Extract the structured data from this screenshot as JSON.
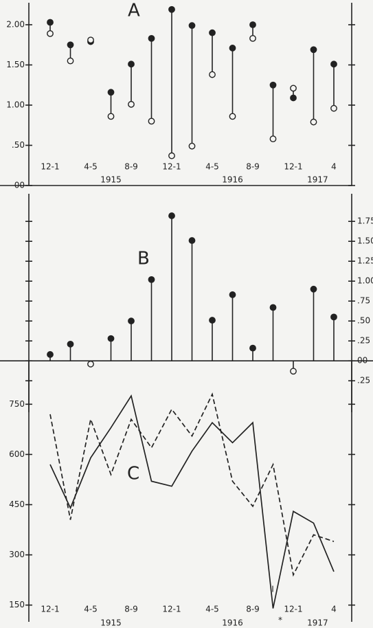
{
  "chart_data": [
    {
      "type": "dumbbell",
      "title": "A",
      "categories": [
        "12-1",
        null,
        "4-5",
        null,
        "8-9",
        null,
        "12-1",
        null,
        "4-5",
        null,
        "8-9",
        null,
        "12-1",
        null,
        "4"
      ],
      "year_labels": [
        "1915",
        "1916",
        "1917"
      ],
      "series": [
        {
          "marker": "filled",
          "color": "#222222",
          "values": [
            2.03,
            1.75,
            1.79,
            1.16,
            1.51,
            1.83,
            2.19,
            1.99,
            1.9,
            1.71,
            2.0,
            1.25,
            1.09,
            1.69,
            1.51
          ]
        },
        {
          "marker": "open",
          "color": "#222222",
          "values": [
            1.89,
            1.55,
            1.81,
            0.86,
            1.01,
            0.8,
            0.37,
            0.49,
            1.38,
            0.86,
            1.83,
            0.58,
            1.21,
            0.79,
            0.96
          ]
        }
      ],
      "ylim": [
        0,
        2.25
      ],
      "yticks": [
        {
          "value": 0,
          "label": "00"
        },
        {
          "value": 0.5,
          "label": ".50"
        },
        {
          "value": 1,
          "label": "1.00"
        },
        {
          "value": 1.5,
          "label": "1.50"
        },
        {
          "value": 2,
          "label": "2.00"
        }
      ]
    },
    {
      "type": "lollipop",
      "title": "B",
      "color": "#222222",
      "values": [
        0.08,
        0.21,
        -0.04,
        0.28,
        0.5,
        1.02,
        1.82,
        1.51,
        0.51,
        0.83,
        0.16,
        0.67,
        -0.13,
        0.9,
        0.55
      ],
      "ylim": [
        -0.3,
        2.1
      ],
      "yticks": [
        1.75,
        {
          "value": 1.5,
          "label": "1.50"
        },
        1.25,
        {
          "value": 1,
          "label": "1.00"
        },
        {
          "value": 0.75,
          "label": ".75"
        },
        {
          "value": 0.5,
          "label": ".50"
        },
        {
          "value": 0.25,
          "label": ".25"
        },
        {
          "value": 0,
          "label": "00"
        },
        {
          "value": -0.25,
          "label": ".25"
        }
      ]
    },
    {
      "type": "line",
      "title": "C",
      "categories": [
        "12-1",
        null,
        "4-5",
        null,
        "8-9",
        null,
        "12-1",
        null,
        "4-5",
        null,
        "8-9",
        null,
        "12-1",
        null,
        "4"
      ],
      "year_labels": [
        "1915",
        "1916",
        "1917"
      ],
      "annotations": [
        "I",
        "*"
      ],
      "series": [
        {
          "dash": false,
          "color": "#222222",
          "values": [
            570,
            440,
            590,
            680,
            775,
            520,
            505,
            610,
            695,
            635,
            695,
            140,
            430,
            395,
            250
          ]
        },
        {
          "dash": true,
          "color": "#222222",
          "values": [
            720,
            405,
            705,
            540,
            705,
            620,
            735,
            655,
            780,
            520,
            445,
            570,
            240,
            360,
            340
          ]
        }
      ],
      "ylim": [
        100,
        880
      ],
      "yticks": [
        150,
        300,
        450,
        600,
        750
      ]
    }
  ]
}
